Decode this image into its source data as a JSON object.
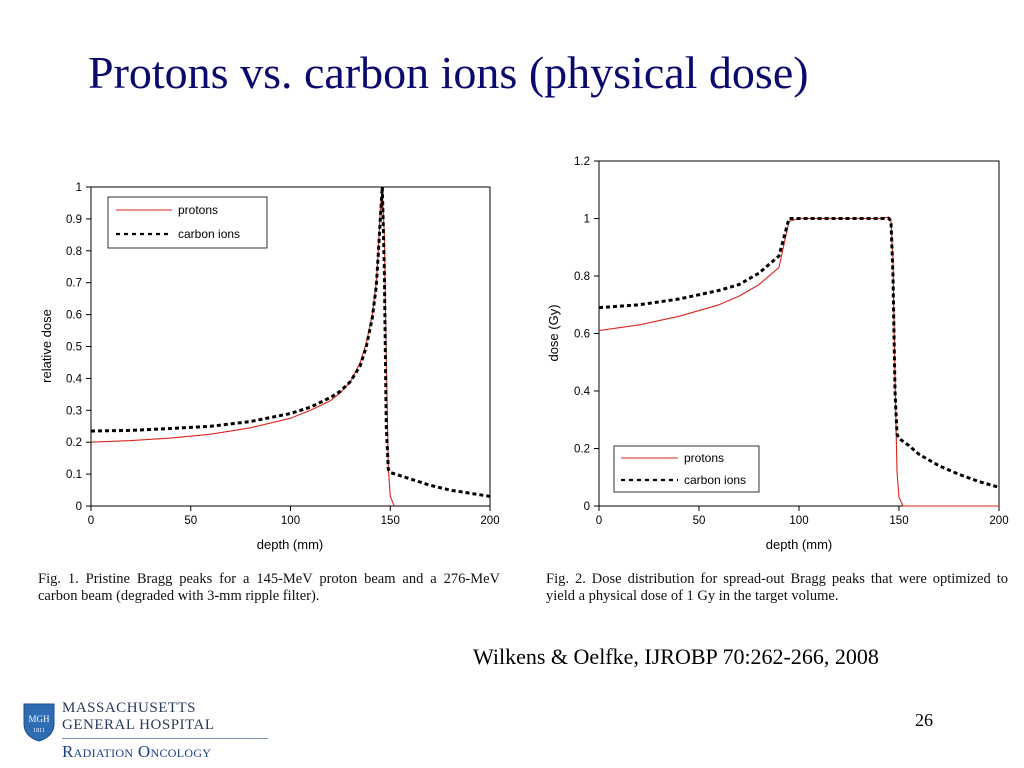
{
  "slide": {
    "title": "Protons vs. carbon ions (physical dose)",
    "citation": "Wilkens & Oelfke, IJROBP 70:262-266, 2008",
    "page_number": "26"
  },
  "logo": {
    "line1": "MASSACHUSETTS",
    "line2": "GENERAL HOSPITAL",
    "department": "Radiation Oncology",
    "shield_text": "MGH",
    "shield_year": "1811",
    "colors": {
      "shield": "#2e6db4",
      "text": "#2a3a5a",
      "department": "#1a3f86"
    }
  },
  "captions": {
    "fig1": "Fig. 1. Pristine Bragg peaks for a 145-MeV proton beam and a 276-MeV carbon beam (degraded with 3-mm ripple filter).",
    "fig2": "Fig. 2. Dose distribution for spread-out Bragg peaks that were optimized to yield a physical dose of 1 Gy in the target volume."
  },
  "chart_data": [
    {
      "type": "line",
      "xlabel": "depth (mm)",
      "ylabel": "relative dose",
      "xlim": [
        0,
        200
      ],
      "ylim": [
        0,
        1
      ],
      "xticks": [
        0,
        50,
        100,
        150,
        200
      ],
      "yticks": [
        0,
        0.1,
        0.2,
        0.3,
        0.4,
        0.5,
        0.6,
        0.7,
        0.8,
        0.9,
        1
      ],
      "ytick_labels": [
        "0",
        "0.1",
        "0.2",
        "0.3",
        "0.4",
        "0.5",
        "0.6",
        "0.7",
        "0.8",
        "0.9",
        "1"
      ],
      "grid": false,
      "legend_position": "top-left",
      "series": [
        {
          "name": "protons",
          "color": "#d9261c",
          "style": "solid",
          "x": [
            0,
            20,
            40,
            60,
            80,
            100,
            110,
            120,
            125,
            130,
            135,
            138,
            141,
            143,
            144,
            145,
            146,
            147,
            148,
            149,
            150,
            152
          ],
          "y": [
            0.2,
            0.205,
            0.213,
            0.225,
            0.245,
            0.275,
            0.3,
            0.33,
            0.355,
            0.39,
            0.45,
            0.51,
            0.6,
            0.7,
            0.8,
            0.93,
            0.99,
            0.85,
            0.45,
            0.12,
            0.03,
            0.0
          ]
        },
        {
          "name": "carbon ions",
          "color": "#000000",
          "style": "dashed",
          "x": [
            0,
            20,
            40,
            60,
            80,
            100,
            110,
            120,
            125,
            130,
            135,
            138,
            141,
            143,
            144,
            145,
            146,
            147,
            148,
            149,
            150,
            155,
            160,
            170,
            180,
            190,
            200
          ],
          "y": [
            0.235,
            0.237,
            0.243,
            0.25,
            0.265,
            0.29,
            0.31,
            0.34,
            0.36,
            0.39,
            0.44,
            0.5,
            0.59,
            0.69,
            0.79,
            0.9,
            1.0,
            0.75,
            0.25,
            0.115,
            0.105,
            0.095,
            0.085,
            0.065,
            0.05,
            0.04,
            0.03
          ]
        }
      ]
    },
    {
      "type": "line",
      "xlabel": "depth (mm)",
      "ylabel": "dose (Gy)",
      "xlim": [
        0,
        200
      ],
      "ylim": [
        0,
        1.2
      ],
      "xticks": [
        0,
        50,
        100,
        150,
        200
      ],
      "yticks": [
        0,
        0.2,
        0.4,
        0.6,
        0.8,
        1,
        1.2
      ],
      "ytick_labels": [
        "0",
        "0.2",
        "0.4",
        "0.6",
        "0.8",
        "1",
        "1.2"
      ],
      "grid": false,
      "legend_position": "bottom-left",
      "series": [
        {
          "name": "protons",
          "color": "#d9261c",
          "style": "solid",
          "x": [
            0,
            20,
            40,
            60,
            70,
            80,
            90,
            95,
            100,
            120,
            140,
            145,
            146,
            147,
            148,
            149,
            150,
            152,
            155,
            200
          ],
          "y": [
            0.61,
            0.63,
            0.66,
            0.7,
            0.73,
            0.77,
            0.83,
            0.99,
            1.0,
            1.0,
            1.0,
            1.005,
            0.99,
            0.85,
            0.45,
            0.12,
            0.03,
            0.0,
            0.0,
            0.0
          ]
        },
        {
          "name": "carbon ions",
          "color": "#000000",
          "style": "dashed",
          "x": [
            0,
            20,
            40,
            60,
            70,
            80,
            90,
            95,
            100,
            120,
            140,
            145,
            146,
            147,
            148,
            149,
            150,
            155,
            160,
            170,
            180,
            190,
            200
          ],
          "y": [
            0.69,
            0.7,
            0.72,
            0.75,
            0.77,
            0.81,
            0.87,
            1.0,
            1.0,
            1.0,
            1.0,
            1.0,
            0.99,
            0.8,
            0.4,
            0.25,
            0.235,
            0.21,
            0.18,
            0.14,
            0.11,
            0.085,
            0.065
          ]
        }
      ]
    }
  ]
}
